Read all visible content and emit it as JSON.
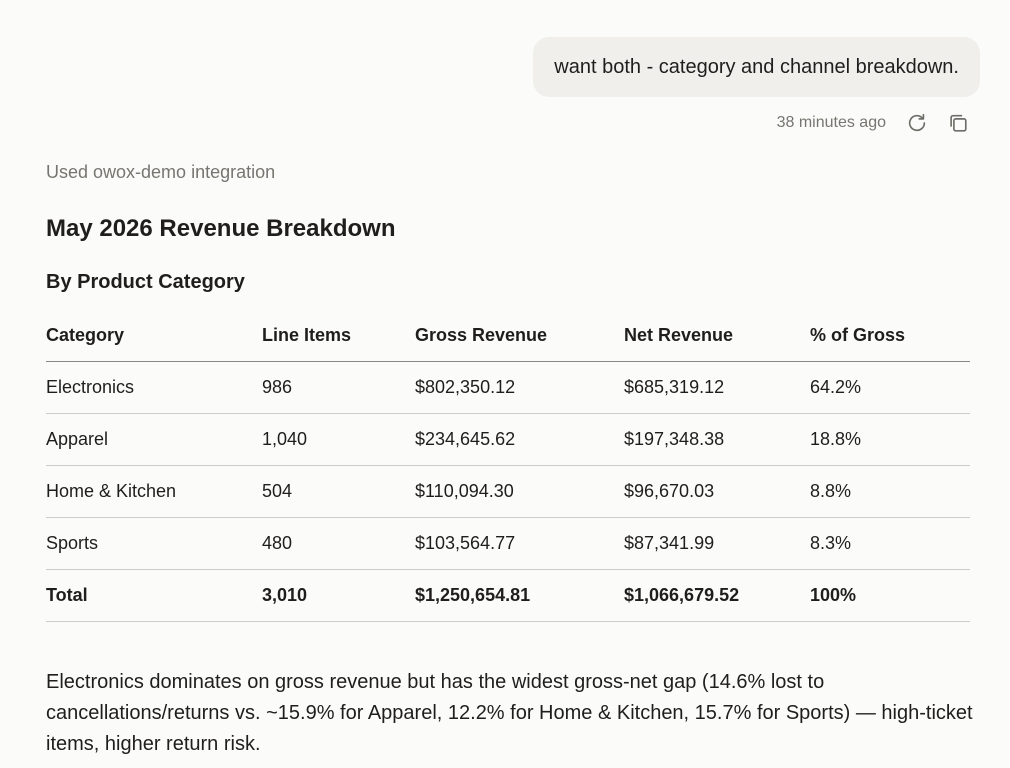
{
  "user_message": {
    "text": "want both - category and channel breakdown.",
    "timestamp": "38 minutes ago",
    "retry_icon": "refresh-icon",
    "copy_icon": "copy-icon"
  },
  "assistant": {
    "integration_note": "Used owox-demo integration",
    "title": "May 2026 Revenue Breakdown",
    "subtitle": "By Product Category",
    "table": {
      "headers": [
        "Category",
        "Line Items",
        "Gross Revenue",
        "Net Revenue",
        "% of Gross"
      ],
      "rows": [
        [
          "Electronics",
          "986",
          "$802,350.12",
          "$685,319.12",
          "64.2%"
        ],
        [
          "Apparel",
          "1,040",
          "$234,645.62",
          "$197,348.38",
          "18.8%"
        ],
        [
          "Home & Kitchen",
          "504",
          "$110,094.30",
          "$96,670.03",
          "8.8%"
        ],
        [
          "Sports",
          "480",
          "$103,564.77",
          "$87,341.99",
          "8.3%"
        ]
      ],
      "total": [
        "Total",
        "3,010",
        "$1,250,654.81",
        "$1,066,679.52",
        "100%"
      ]
    },
    "summary": "Electronics dominates on gross revenue but has the widest gross-net gap (14.6% lost to cancellations/returns vs. ~15.9% for Apparel, 12.2% for Home & Kitchen, 15.7% for Sports) — high-ticket items, higher return risk."
  },
  "colors": {
    "background": "#fbfbf9",
    "bubble": "#f0efec",
    "muted_text": "#77756f",
    "text": "#1f1e1c"
  }
}
